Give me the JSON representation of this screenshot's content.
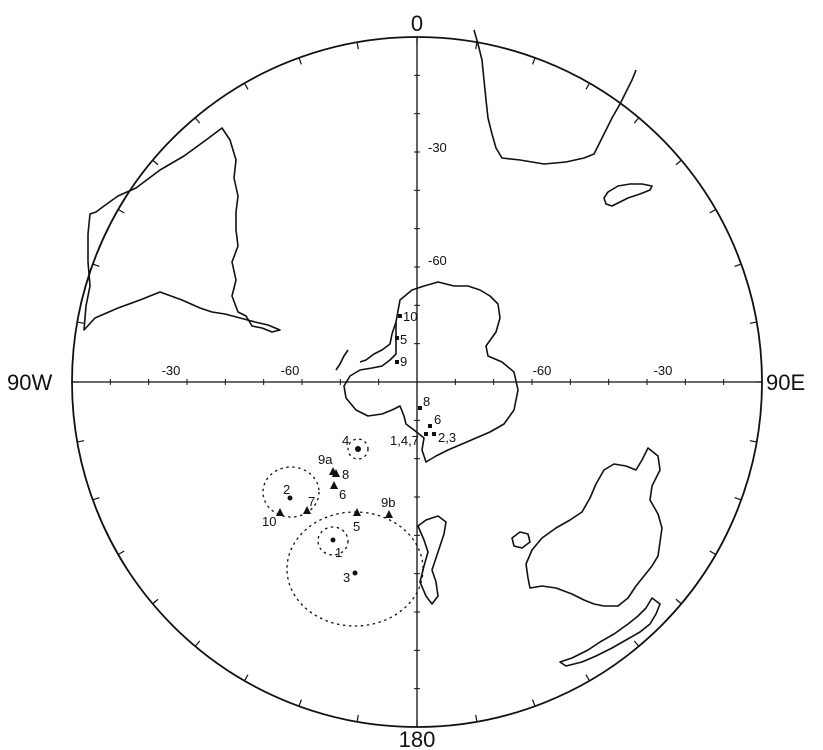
{
  "map": {
    "edge_labels": {
      "top": "0",
      "bottom": "180",
      "left": "90W",
      "right": "90E"
    },
    "meridian_labels": [
      "-30",
      "-60"
    ],
    "parallel_labels": {
      "west": [
        "-30",
        "-60"
      ],
      "east": [
        "-60",
        "-30"
      ]
    },
    "triangle_sites": [
      {
        "label": "9a"
      },
      {
        "label": "8"
      },
      {
        "label": "6"
      },
      {
        "label": "7"
      },
      {
        "label": "10"
      },
      {
        "label": "5"
      },
      {
        "label": "9b"
      }
    ],
    "circle_sites": [
      {
        "label": "4"
      },
      {
        "label": "2"
      },
      {
        "label": "1"
      },
      {
        "label": "3"
      }
    ],
    "square_sites": [
      {
        "label": "10"
      },
      {
        "label": "5"
      },
      {
        "label": "9"
      },
      {
        "label": "8"
      },
      {
        "label": "6"
      },
      {
        "label": "1,4,7"
      },
      {
        "label": "2,3"
      }
    ]
  }
}
